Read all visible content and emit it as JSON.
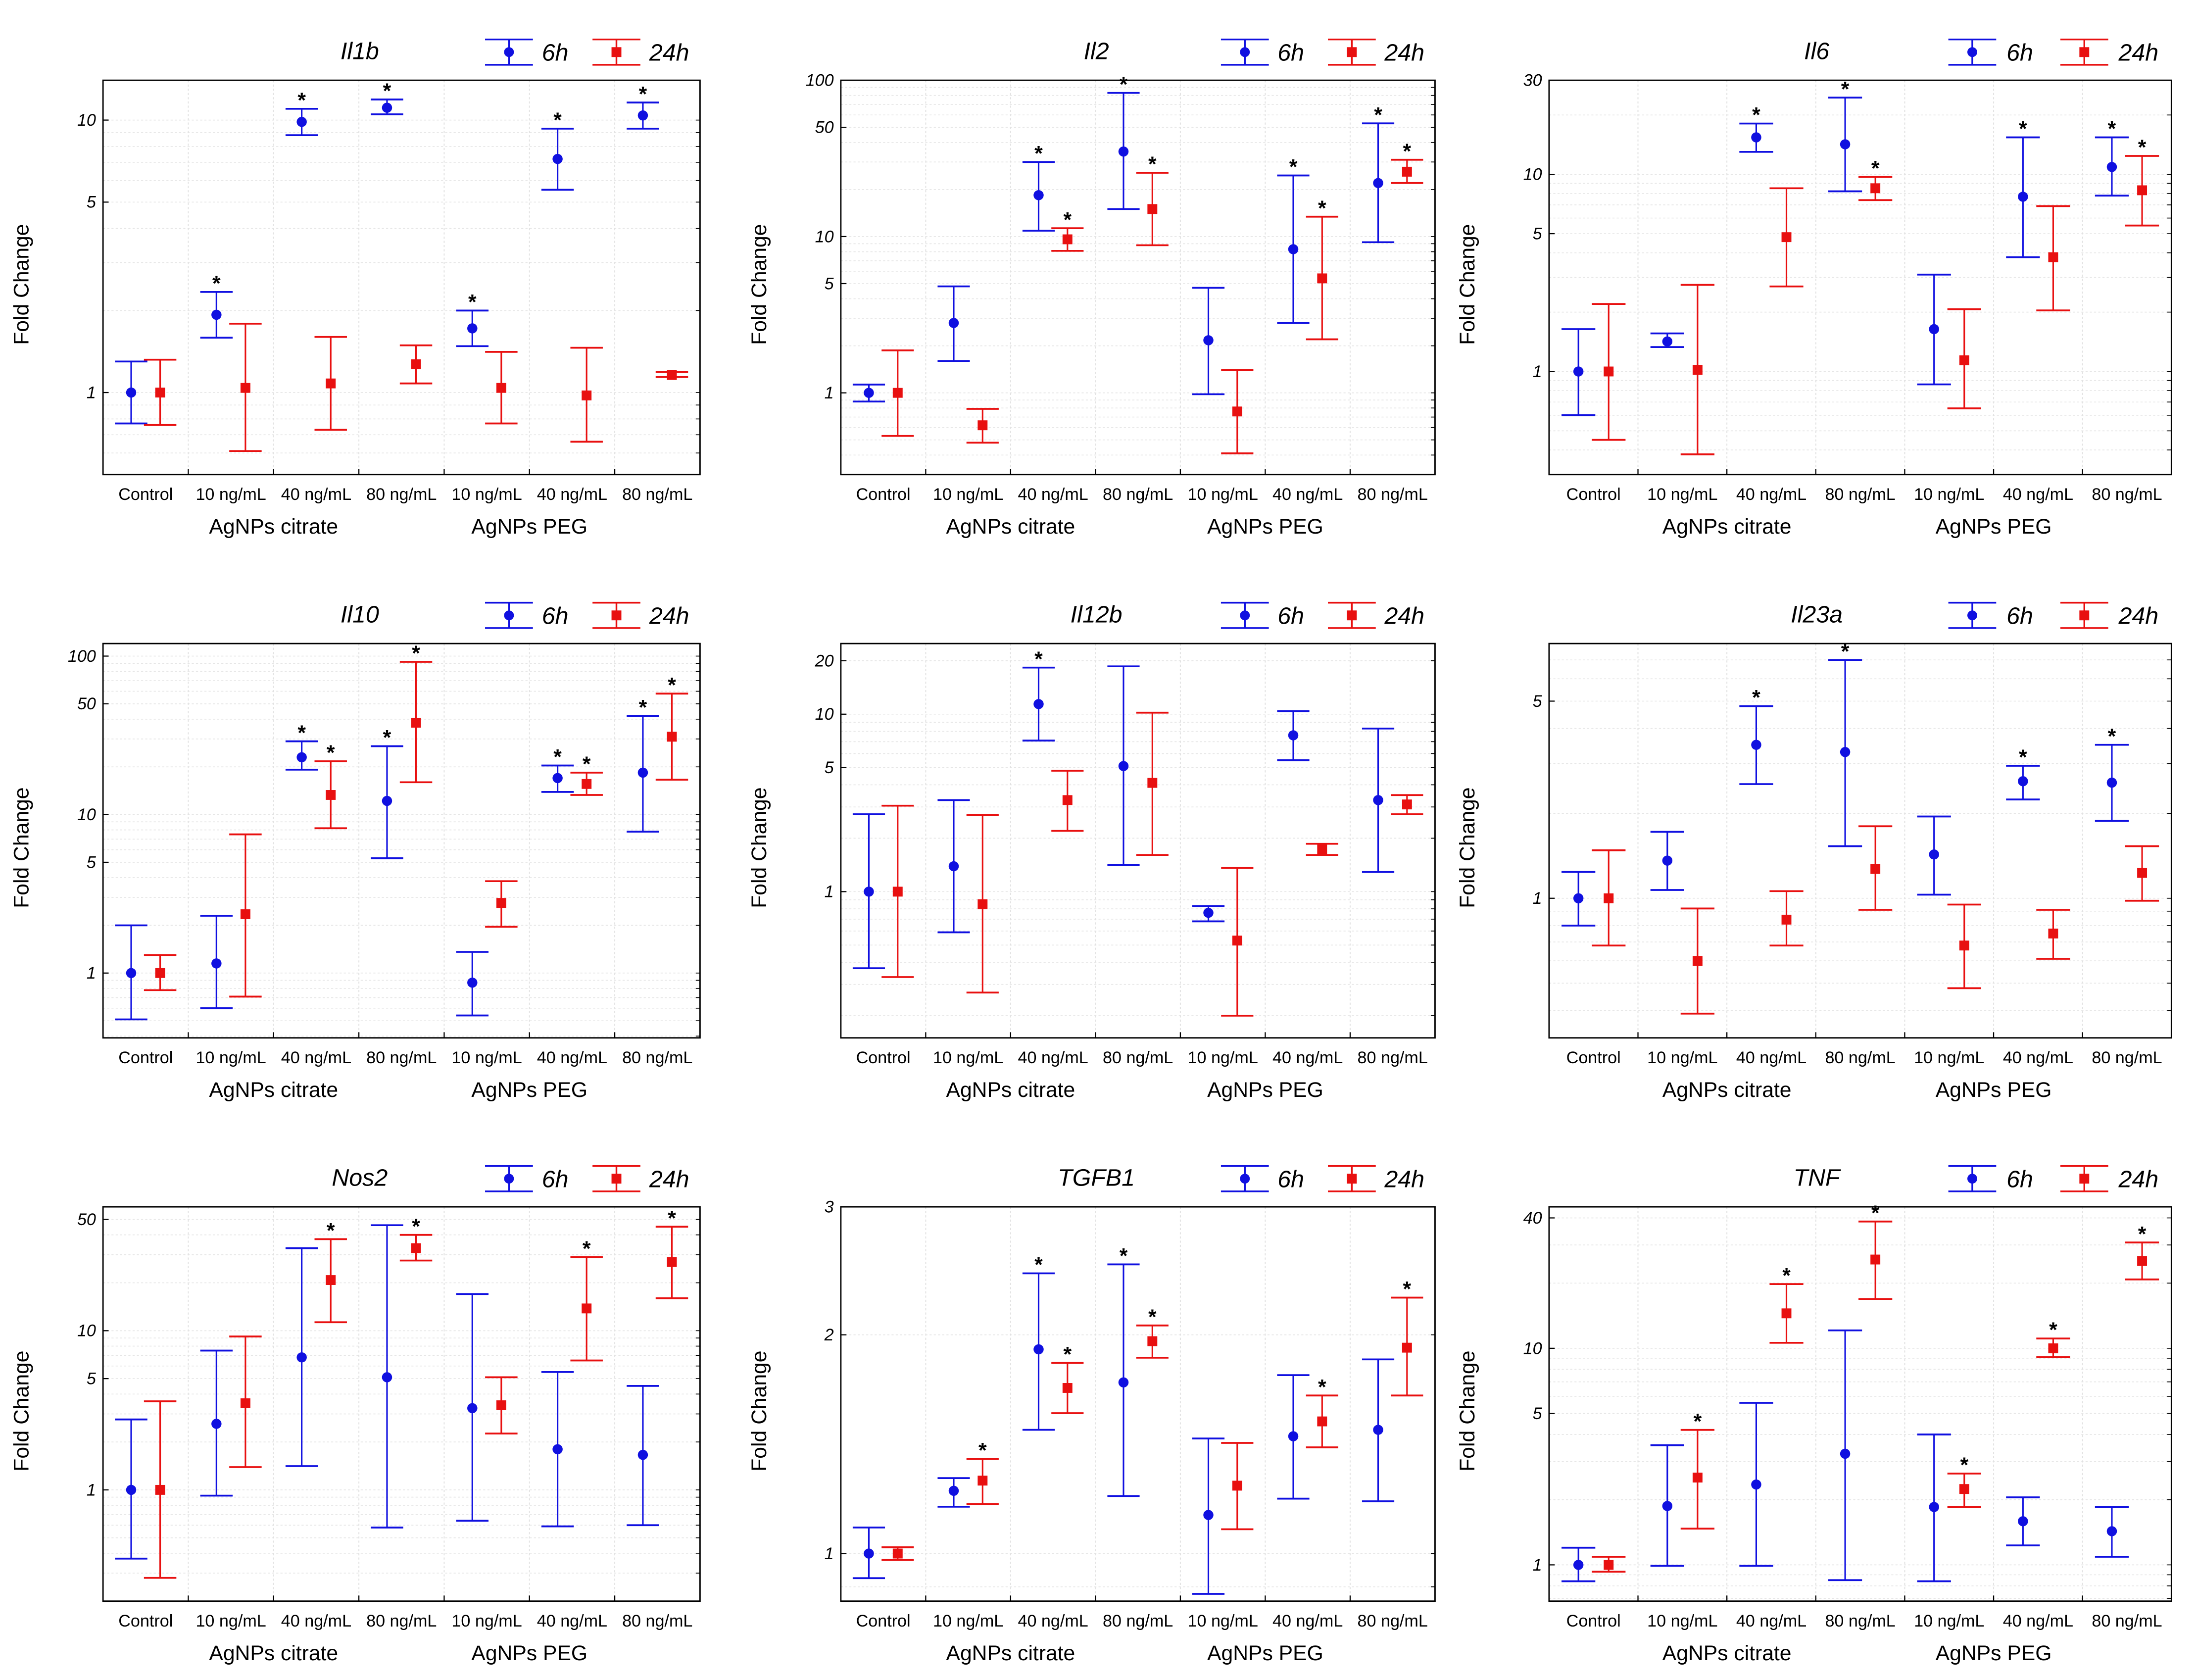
{
  "shared": {
    "categories": [
      "Control",
      "10 ng/mL",
      "40 ng/mL",
      "80 ng/mL",
      "10 ng/mL",
      "40 ng/mL",
      "80 ng/mL"
    ],
    "groups": [
      "AgNPs citrate",
      "AgNPs PEG"
    ],
    "ylabel": "Fold Change",
    "legend": [
      "6h",
      "24h"
    ],
    "star": "*",
    "colors": {
      "h6": "#1010e0",
      "h24": "#e81010"
    }
  },
  "chart_data": [
    {
      "type": "scatter",
      "title": "Il1b",
      "yscale": "log",
      "ylim": [
        0.5,
        14
      ],
      "ticks": [
        {
          "v": 1,
          "label": "1"
        },
        {
          "v": 5,
          "label": "5"
        },
        {
          "v": 10,
          "label": "10"
        }
      ],
      "h6": [
        [
          1,
          0.77,
          1.3
        ],
        [
          1.93,
          1.59,
          2.34
        ],
        [
          9.85,
          8.8,
          11.0
        ],
        [
          11.1,
          10.5,
          11.9
        ],
        [
          1.72,
          1.48,
          2.0
        ],
        [
          7.2,
          5.55,
          9.3
        ],
        [
          10.4,
          9.3,
          11.6
        ]
      ],
      "h24": [
        [
          1,
          0.76,
          1.32
        ],
        [
          1.04,
          0.61,
          1.79
        ],
        [
          1.08,
          0.73,
          1.6
        ],
        [
          1.27,
          1.08,
          1.49
        ],
        [
          1.04,
          0.77,
          1.41
        ],
        [
          0.976,
          0.66,
          1.46
        ],
        [
          1.16,
          1.14,
          1.19
        ]
      ],
      "star6": [
        0,
        1,
        1,
        1,
        1,
        1,
        1
      ],
      "star24": [
        0,
        0,
        0,
        0,
        0,
        0,
        0
      ]
    },
    {
      "type": "scatter",
      "title": "Il2",
      "yscale": "log",
      "ylim": [
        0.3,
        100
      ],
      "ticks": [
        {
          "v": 1,
          "label": "1"
        },
        {
          "v": 5,
          "label": "5"
        },
        {
          "v": 10,
          "label": "10"
        },
        {
          "v": 50,
          "label": "50"
        },
        {
          "v": 100,
          "label": "100"
        }
      ],
      "h6": [
        [
          1,
          0.88,
          1.13
        ],
        [
          2.8,
          1.6,
          4.8
        ],
        [
          18.4,
          10.9,
          30
        ],
        [
          35,
          15,
          83
        ],
        [
          2.17,
          0.98,
          4.7
        ],
        [
          8.3,
          2.8,
          24.6
        ],
        [
          22,
          9.2,
          53
        ]
      ],
      "h24": [
        [
          1,
          0.53,
          1.87
        ],
        [
          0.62,
          0.48,
          0.79
        ],
        [
          9.6,
          8.1,
          11.3
        ],
        [
          15,
          8.8,
          25.6
        ],
        [
          0.76,
          0.41,
          1.4
        ],
        [
          5.4,
          2.2,
          13.4
        ],
        [
          26,
          22,
          31
        ]
      ],
      "star6": [
        0,
        0,
        1,
        1,
        0,
        1,
        1
      ],
      "star24": [
        0,
        0,
        1,
        1,
        0,
        1,
        1
      ]
    },
    {
      "type": "scatter",
      "title": "Il6",
      "yscale": "log",
      "ylim": [
        0.3,
        30
      ],
      "ticks": [
        {
          "v": 1,
          "label": "1"
        },
        {
          "v": 5,
          "label": "5"
        },
        {
          "v": 10,
          "label": "10"
        },
        {
          "v": 30,
          "label": "30"
        }
      ],
      "h6": [
        [
          1,
          0.6,
          1.64
        ],
        [
          1.42,
          1.33,
          1.56
        ],
        [
          15.4,
          13.0,
          18.1
        ],
        [
          14.2,
          8.2,
          24.5
        ],
        [
          1.64,
          0.86,
          3.1
        ],
        [
          7.7,
          3.8,
          15.4
        ],
        [
          10.9,
          7.8,
          15.4
        ]
      ],
      "h24": [
        [
          1,
          0.45,
          2.2
        ],
        [
          1.02,
          0.38,
          2.75
        ],
        [
          4.8,
          2.7,
          8.5
        ],
        [
          8.5,
          7.4,
          9.7
        ],
        [
          1.14,
          0.65,
          2.07
        ],
        [
          3.8,
          2.04,
          6.9
        ],
        [
          8.3,
          5.5,
          12.4
        ]
      ],
      "star6": [
        0,
        0,
        1,
        1,
        0,
        1,
        1
      ],
      "star24": [
        0,
        0,
        0,
        1,
        0,
        0,
        1
      ]
    },
    {
      "type": "scatter",
      "title": "Il10",
      "yscale": "log",
      "ylim": [
        0.39,
        120
      ],
      "ticks": [
        {
          "v": 1,
          "label": "1"
        },
        {
          "v": 5,
          "label": "5"
        },
        {
          "v": 10,
          "label": "10"
        },
        {
          "v": 50,
          "label": "50"
        },
        {
          "v": 100,
          "label": "100"
        }
      ],
      "h6": [
        [
          1,
          0.51,
          2.0
        ],
        [
          1.15,
          0.6,
          2.3
        ],
        [
          23,
          19.2,
          29
        ],
        [
          12.2,
          5.3,
          27
        ],
        [
          0.87,
          0.54,
          1.36
        ],
        [
          17,
          13.9,
          20.4
        ],
        [
          18.4,
          7.8,
          42
        ]
      ],
      "h24": [
        [
          1,
          0.78,
          1.3
        ],
        [
          2.35,
          0.71,
          7.5
        ],
        [
          13.3,
          8.2,
          21.7
        ],
        [
          38,
          16,
          92
        ],
        [
          2.77,
          1.96,
          3.8
        ],
        [
          15.6,
          13.3,
          18.4
        ],
        [
          31,
          16.6,
          58
        ]
      ],
      "star6": [
        0,
        0,
        1,
        1,
        0,
        1,
        1
      ],
      "star24": [
        0,
        0,
        1,
        1,
        0,
        1,
        1
      ]
    },
    {
      "type": "scatter",
      "title": "Il12b",
      "yscale": "log",
      "ylim": [
        0.15,
        25
      ],
      "ticks": [
        {
          "v": 1,
          "label": "1"
        },
        {
          "v": 5,
          "label": "5"
        },
        {
          "v": 10,
          "label": "10"
        },
        {
          "v": 20,
          "label": "20"
        }
      ],
      "h6": [
        [
          1,
          0.37,
          2.73
        ],
        [
          1.39,
          0.59,
          3.28
        ],
        [
          11.4,
          7.1,
          18.3
        ],
        [
          5.1,
          1.41,
          18.6
        ],
        [
          0.76,
          0.68,
          0.83
        ],
        [
          7.6,
          5.5,
          10.4
        ],
        [
          3.28,
          1.29,
          8.3
        ]
      ],
      "h24": [
        [
          1,
          0.33,
          3.05
        ],
        [
          0.85,
          0.27,
          2.7
        ],
        [
          3.28,
          2.2,
          4.8
        ],
        [
          4.1,
          1.61,
          10.2
        ],
        [
          0.53,
          0.2,
          1.36
        ],
        [
          1.73,
          1.61,
          1.86
        ],
        [
          3.1,
          2.73,
          3.5
        ]
      ],
      "star6": [
        0,
        0,
        1,
        0,
        0,
        0,
        0
      ],
      "star24": [
        0,
        0,
        0,
        0,
        0,
        0,
        0
      ]
    },
    {
      "type": "scatter",
      "title": "Il23a",
      "yscale": "log",
      "ylim": [
        0.32,
        8
      ],
      "ticks": [
        {
          "v": 1,
          "label": "1"
        },
        {
          "v": 5,
          "label": "5"
        }
      ],
      "h6": [
        [
          1,
          0.8,
          1.24
        ],
        [
          1.36,
          1.07,
          1.72
        ],
        [
          3.5,
          2.54,
          4.8
        ],
        [
          3.3,
          1.53,
          7.0
        ],
        [
          1.43,
          1.03,
          1.95
        ],
        [
          2.6,
          2.24,
          2.95
        ],
        [
          2.57,
          1.88,
          3.5
        ]
      ],
      "h24": [
        [
          1,
          0.68,
          1.48
        ],
        [
          0.6,
          0.39,
          0.92
        ],
        [
          0.84,
          0.68,
          1.06
        ],
        [
          1.27,
          0.91,
          1.8
        ],
        [
          0.68,
          0.48,
          0.95
        ],
        [
          0.75,
          0.61,
          0.91
        ],
        [
          1.23,
          0.98,
          1.53
        ]
      ],
      "star6": [
        0,
        0,
        1,
        1,
        0,
        1,
        1
      ],
      "star24": [
        0,
        0,
        0,
        0,
        0,
        0,
        0
      ]
    },
    {
      "type": "scatter",
      "title": "Nos2",
      "yscale": "log",
      "ylim": [
        0.2,
        60
      ],
      "ticks": [
        {
          "v": 1,
          "label": "1"
        },
        {
          "v": 5,
          "label": "5"
        },
        {
          "v": 10,
          "label": "10"
        },
        {
          "v": 50,
          "label": "50"
        }
      ],
      "h6": [
        [
          1,
          0.37,
          2.77
        ],
        [
          2.6,
          0.92,
          7.5
        ],
        [
          6.8,
          1.41,
          33
        ],
        [
          5.1,
          0.58,
          46
        ],
        [
          3.26,
          0.64,
          17
        ],
        [
          1.8,
          0.59,
          5.5
        ],
        [
          1.66,
          0.6,
          4.5
        ]
      ],
      "h24": [
        [
          1,
          0.28,
          3.6
        ],
        [
          3.5,
          1.39,
          9.2
        ],
        [
          20.8,
          11.3,
          37.6
        ],
        [
          33,
          27.6,
          40
        ],
        [
          3.4,
          2.26,
          5.1
        ],
        [
          13.8,
          6.5,
          29
        ],
        [
          27,
          16,
          45
        ]
      ],
      "star6": [
        0,
        0,
        0,
        0,
        0,
        0,
        0
      ],
      "star24": [
        0,
        0,
        1,
        1,
        0,
        1,
        1
      ]
    },
    {
      "type": "scatter",
      "title": "TGFB1",
      "yscale": "log",
      "ylim": [
        0.86,
        3
      ],
      "ticks": [
        {
          "v": 1,
          "label": "1"
        },
        {
          "v": 2,
          "label": "2"
        },
        {
          "v": 3,
          "label": "3"
        }
      ],
      "h6": [
        [
          1,
          0.925,
          1.086
        ],
        [
          1.22,
          1.16,
          1.27
        ],
        [
          1.91,
          1.48,
          2.43
        ],
        [
          1.72,
          1.2,
          2.5
        ],
        [
          1.13,
          0.88,
          1.44
        ],
        [
          1.45,
          1.19,
          1.76
        ],
        [
          1.48,
          1.18,
          1.85
        ]
      ],
      "h24": [
        [
          1,
          0.98,
          1.02
        ],
        [
          1.26,
          1.17,
          1.35
        ],
        [
          1.69,
          1.56,
          1.83
        ],
        [
          1.96,
          1.86,
          2.06
        ],
        [
          1.24,
          1.08,
          1.42
        ],
        [
          1.52,
          1.4,
          1.65
        ],
        [
          1.92,
          1.65,
          2.25
        ]
      ],
      "star6": [
        0,
        0,
        1,
        1,
        0,
        0,
        0
      ],
      "star24": [
        0,
        1,
        1,
        1,
        0,
        1,
        1
      ]
    },
    {
      "type": "scatter",
      "title": "TNF",
      "yscale": "log",
      "ylim": [
        0.68,
        45
      ],
      "ticks": [
        {
          "v": 1,
          "label": "1"
        },
        {
          "v": 5,
          "label": "5"
        },
        {
          "v": 10,
          "label": "10"
        },
        {
          "v": 40,
          "label": "40"
        }
      ],
      "h6": [
        [
          1,
          0.84,
          1.2
        ],
        [
          1.87,
          0.99,
          3.57
        ],
        [
          2.35,
          0.99,
          5.6
        ],
        [
          3.26,
          0.85,
          12.1
        ],
        [
          1.85,
          0.84,
          4.0
        ],
        [
          1.59,
          1.23,
          2.05
        ],
        [
          1.43,
          1.09,
          1.85
        ]
      ],
      "h24": [
        [
          1,
          0.93,
          1.09
        ],
        [
          2.53,
          1.47,
          4.2
        ],
        [
          14.5,
          10.6,
          19.8
        ],
        [
          25.7,
          16.9,
          38.5
        ],
        [
          2.24,
          1.85,
          2.64
        ],
        [
          10,
          9.1,
          11.1
        ],
        [
          25.3,
          20.8,
          30.8
        ]
      ],
      "star6": [
        0,
        0,
        0,
        0,
        0,
        0,
        0
      ],
      "star24": [
        0,
        1,
        1,
        1,
        1,
        1,
        1
      ]
    }
  ]
}
